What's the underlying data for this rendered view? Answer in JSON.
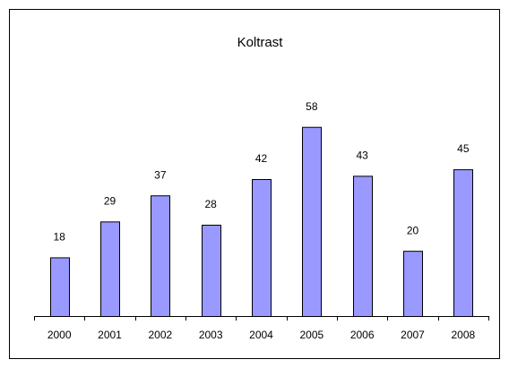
{
  "chart_data": {
    "type": "bar",
    "title": "Koltrast",
    "categories": [
      "2000",
      "2001",
      "2002",
      "2003",
      "2004",
      "2005",
      "2006",
      "2007",
      "2008"
    ],
    "values": [
      18,
      29,
      37,
      28,
      42,
      58,
      43,
      20,
      45
    ],
    "color": "#9999ff",
    "ylim": [
      0,
      70
    ]
  }
}
